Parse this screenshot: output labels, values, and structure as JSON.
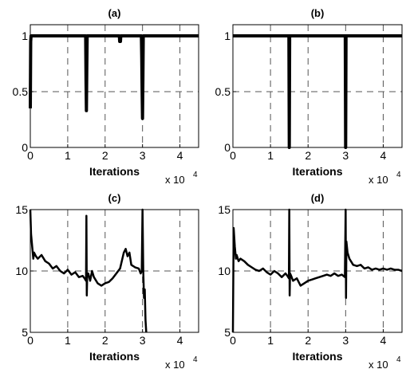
{
  "chart_data": [
    {
      "id": "a",
      "type": "line",
      "title": "(a)",
      "xlabel": "Iterations",
      "x_multiplier": {
        "base": "x 10",
        "exponent": "4"
      },
      "xlim": [
        0,
        4.5
      ],
      "ylim": [
        0,
        1.1
      ],
      "xticks": [
        0,
        1,
        2,
        3,
        4
      ],
      "yticks": [
        0,
        0.5,
        1
      ],
      "xtick_labels": [
        "0",
        "1",
        "2",
        "3",
        "4"
      ],
      "ytick_labels": [
        "0",
        "0.5",
        "1"
      ],
      "grid": true,
      "series": [
        {
          "x": [
            0,
            0.01,
            0.02,
            0.05,
            1.48,
            1.49,
            1.5,
            1.51,
            1.52,
            2.38,
            2.39,
            2.4,
            2.41,
            2.42,
            2.97,
            2.98,
            2.99,
            3.0,
            3.01,
            3.02,
            4.5
          ],
          "y": [
            0.35,
            0.95,
            1,
            1,
            1,
            0.6,
            0.33,
            0.7,
            1,
            1,
            0.95,
            0.97,
            0.95,
            1,
            1,
            0.8,
            0.5,
            0.26,
            0.6,
            1,
            1
          ]
        }
      ]
    },
    {
      "id": "b",
      "type": "line",
      "title": "(b)",
      "xlabel": "Iterations",
      "x_multiplier": {
        "base": "x 10",
        "exponent": "4"
      },
      "xlim": [
        0,
        4.5
      ],
      "ylim": [
        0,
        1.1
      ],
      "xticks": [
        0,
        1,
        2,
        3,
        4
      ],
      "yticks": [
        0,
        0.5,
        1
      ],
      "xtick_labels": [
        "0",
        "1",
        "2",
        "3",
        "4"
      ],
      "ytick_labels": [
        "0",
        "0.5",
        "1"
      ],
      "grid": true,
      "series": [
        {
          "x": [
            0,
            1.49,
            1.5,
            1.51,
            2.99,
            3.0,
            3.01,
            4.5
          ],
          "y": [
            1,
            1,
            0,
            1,
            1,
            0,
            1,
            1
          ]
        }
      ]
    },
    {
      "id": "c",
      "type": "line",
      "title": "(c)",
      "xlabel": "Iterations",
      "x_multiplier": {
        "base": "x 10",
        "exponent": "4"
      },
      "xlim": [
        0,
        4.5
      ],
      "ylim": [
        5,
        15
      ],
      "xticks": [
        0,
        1,
        2,
        3,
        4
      ],
      "yticks": [
        5,
        10,
        15
      ],
      "xtick_labels": [
        "0",
        "1",
        "2",
        "3",
        "4"
      ],
      "ytick_labels": [
        "5",
        "10",
        "15"
      ],
      "grid": true,
      "series": [
        {
          "x": [
            0,
            0.02,
            0.05,
            0.08,
            0.1,
            0.15,
            0.2,
            0.3,
            0.4,
            0.5,
            0.6,
            0.7,
            0.8,
            0.9,
            1.0,
            1.1,
            1.2,
            1.3,
            1.4,
            1.45,
            1.49,
            1.5,
            1.51,
            1.52,
            1.55,
            1.6,
            1.65,
            1.7,
            1.8,
            1.9,
            2.0,
            2.1,
            2.2,
            2.3,
            2.4,
            2.5,
            2.55,
            2.6,
            2.65,
            2.7,
            2.8,
            2.9,
            2.95,
            2.98,
            3.0,
            3.02,
            3.04,
            3.06,
            3.08,
            3.1
          ],
          "y": [
            15,
            13,
            12,
            11,
            11.5,
            11.2,
            11,
            11.3,
            10.8,
            10.6,
            10.2,
            10.4,
            10,
            9.8,
            10.1,
            9.7,
            9.9,
            9.5,
            9.6,
            9.4,
            9.2,
            14.5,
            8,
            9.5,
            9.8,
            9.2,
            10,
            9.5,
            9,
            8.8,
            9,
            9.1,
            9.4,
            9.8,
            10.2,
            11.5,
            11.8,
            11.2,
            11.5,
            10.5,
            10.3,
            10.2,
            9.8,
            10,
            15,
            10,
            7.8,
            8.5,
            6,
            5
          ]
        }
      ]
    },
    {
      "id": "d",
      "type": "line",
      "title": "(d)",
      "xlabel": "Iterations",
      "x_multiplier": {
        "base": "x 10",
        "exponent": "4"
      },
      "xlim": [
        0,
        4.5
      ],
      "ylim": [
        5,
        15
      ],
      "xticks": [
        0,
        1,
        2,
        3,
        4
      ],
      "yticks": [
        5,
        10,
        15
      ],
      "xtick_labels": [
        "0",
        "1",
        "2",
        "3",
        "4"
      ],
      "ytick_labels": [
        "5",
        "10",
        "15"
      ],
      "grid": true,
      "series": [
        {
          "x": [
            0,
            0.02,
            0.05,
            0.08,
            0.1,
            0.15,
            0.2,
            0.3,
            0.4,
            0.5,
            0.6,
            0.7,
            0.8,
            0.9,
            1.0,
            1.1,
            1.2,
            1.3,
            1.4,
            1.45,
            1.49,
            1.5,
            1.51,
            1.52,
            1.55,
            1.6,
            1.7,
            1.8,
            1.9,
            2.0,
            2.1,
            2.2,
            2.3,
            2.4,
            2.5,
            2.6,
            2.7,
            2.8,
            2.9,
            2.98,
            3.0,
            3.01,
            3.02,
            3.05,
            3.1,
            3.2,
            3.3,
            3.4,
            3.5,
            3.6,
            3.7,
            3.8,
            3.9,
            4.0,
            4.1,
            4.2,
            4.3,
            4.4,
            4.5
          ],
          "y": [
            5,
            13.5,
            12,
            11,
            11.3,
            10.8,
            11,
            10.8,
            10.5,
            10.3,
            10.1,
            10,
            10.2,
            9.9,
            9.7,
            10,
            9.8,
            9.5,
            9.8,
            9.6,
            9.4,
            15,
            8,
            9.8,
            9.6,
            9.2,
            9.4,
            8.8,
            9,
            9.2,
            9.3,
            9.4,
            9.5,
            9.6,
            9.7,
            9.6,
            9.8,
            9.6,
            9.7,
            9.5,
            15,
            7.8,
            12.4,
            11.5,
            11,
            10.5,
            10.4,
            10.5,
            10.2,
            10.3,
            10.1,
            10.2,
            10.1,
            10.2,
            10.1,
            10.2,
            10.1,
            10.1,
            10
          ]
        }
      ]
    }
  ]
}
